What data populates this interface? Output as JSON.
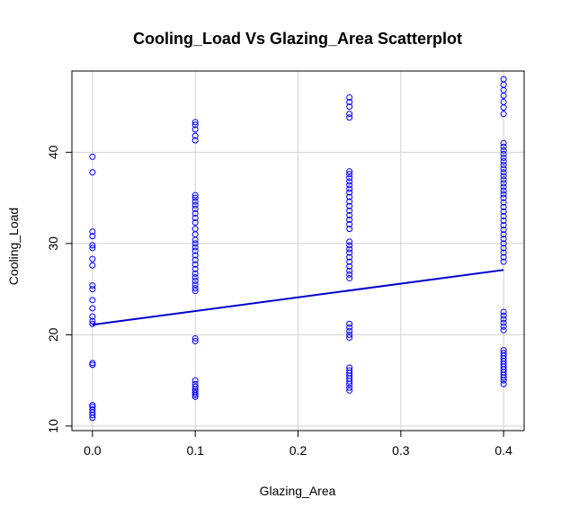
{
  "chart_data": {
    "type": "scatter",
    "title": "Cooling_Load Vs Glazing_Area Scatterplot",
    "xlabel": "Glazing_Area",
    "ylabel": "Cooling_Load",
    "xlim": [
      -0.02,
      0.42
    ],
    "ylim": [
      9.5,
      48.9
    ],
    "xticks": [
      "0.0",
      "0.1",
      "0.2",
      "0.3",
      "0.4"
    ],
    "yticks": [
      "10",
      "20",
      "30",
      "40"
    ],
    "grid": true,
    "point_color": "#0000ff",
    "line_color": "#0000cc",
    "series": [
      {
        "x": 0.0,
        "y": [
          39.5,
          37.8,
          31.3,
          30.8,
          29.8,
          29.5,
          28.3,
          27.6,
          25.4,
          25.0,
          23.8,
          22.9,
          22.0,
          21.5,
          21.2,
          16.9,
          16.7,
          12.3,
          12.1,
          11.8,
          11.5,
          11.2,
          10.9
        ]
      },
      {
        "x": 0.1,
        "y": [
          43.3,
          43.0,
          42.5,
          41.8,
          41.3,
          35.3,
          35.0,
          34.6,
          34.2,
          33.8,
          33.3,
          32.8,
          32.3,
          31.6,
          31.0,
          30.4,
          30.0,
          29.6,
          29.2,
          28.7,
          28.2,
          27.7,
          27.2,
          26.7,
          26.3,
          25.9,
          25.5,
          25.1,
          24.8,
          19.6,
          19.3,
          15.0,
          14.6,
          14.3,
          14.0,
          13.8,
          13.6,
          13.4,
          13.2
        ]
      },
      {
        "x": 0.25,
        "y": [
          46.0,
          45.5,
          45.0,
          44.2,
          43.8,
          37.9,
          37.6,
          37.2,
          36.8,
          36.4,
          36.0,
          35.6,
          35.1,
          34.6,
          34.1,
          33.6,
          33.1,
          32.6,
          32.1,
          31.6,
          30.2,
          29.8,
          29.4,
          29.0,
          28.5,
          28.0,
          27.5,
          27.0,
          26.6,
          26.2,
          21.2,
          20.8,
          20.4,
          20.0,
          19.7,
          16.4,
          16.1,
          15.8,
          15.5,
          15.2,
          14.9,
          14.6,
          14.2,
          13.9
        ]
      },
      {
        "x": 0.4,
        "y": [
          48.0,
          47.4,
          46.8,
          46.2,
          45.5,
          44.9,
          44.2,
          41.0,
          40.6,
          40.2,
          39.8,
          39.4,
          39.0,
          38.6,
          38.2,
          37.8,
          37.4,
          37.0,
          36.6,
          36.2,
          35.8,
          35.4,
          35.0,
          34.5,
          34.0,
          33.5,
          33.0,
          32.5,
          32.0,
          31.5,
          31.0,
          30.5,
          30.0,
          29.5,
          29.0,
          28.5,
          28.0,
          22.5,
          22.1,
          21.7,
          21.3,
          20.9,
          20.5,
          18.3,
          18.0,
          17.7,
          17.4,
          17.1,
          16.8,
          16.5,
          16.2,
          15.9,
          15.6,
          15.3,
          15.0,
          14.6
        ]
      }
    ],
    "regression_line": {
      "x": [
        0.0,
        0.4
      ],
      "y": [
        21.1,
        27.1
      ]
    }
  }
}
